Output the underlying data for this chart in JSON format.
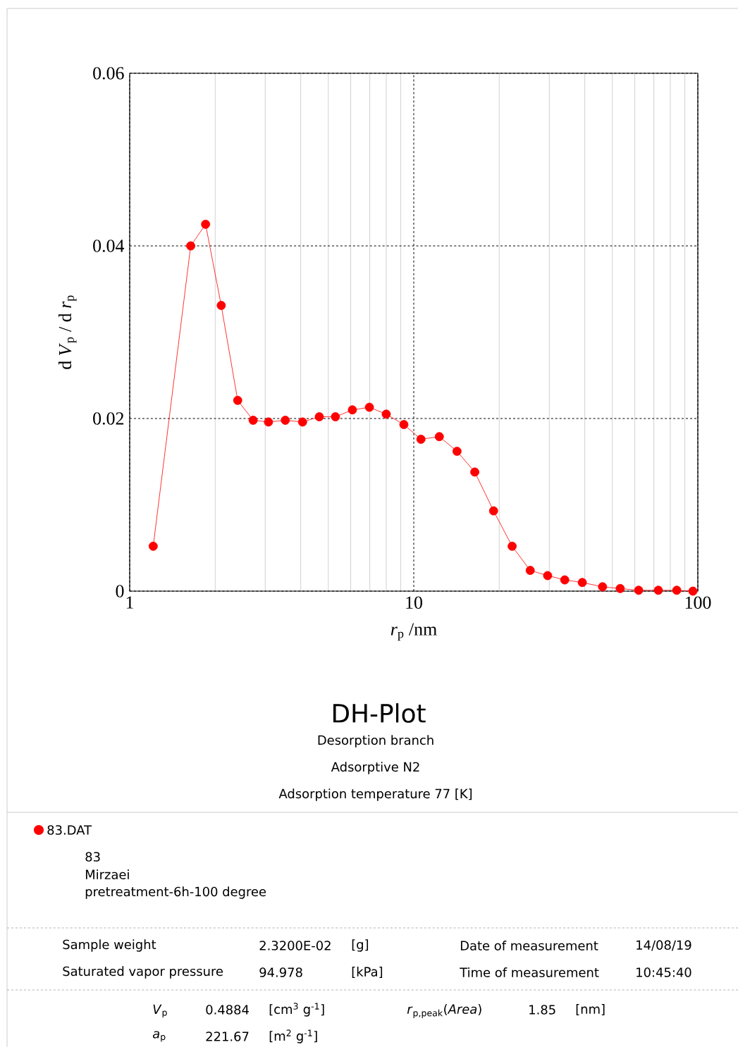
{
  "chart_data": {
    "type": "line",
    "title": "DH-Plot",
    "subtitle": "Desorption branch",
    "xlabel": "*r*$_{p}$ /nm",
    "ylabel": "d *V*$_{p}$ / d *r*$_{p}$",
    "log": "x",
    "xlim": [
      1,
      100
    ],
    "xticks": [
      1,
      10,
      100
    ],
    "ylim": [
      0,
      0.06
    ],
    "yticks": [
      0,
      0.02,
      0.04,
      0.06
    ],
    "grid": true,
    "legend": "bottom",
    "marker": "circle",
    "line_style": "solid",
    "series": [
      {
        "name": "83.DAT",
        "color": "#ff0000",
        "x": [
          1.21,
          1.64,
          1.85,
          2.1,
          2.4,
          2.72,
          3.08,
          3.53,
          4.06,
          4.65,
          5.3,
          6.08,
          6.98,
          8.0,
          9.23,
          10.6,
          12.3,
          14.2,
          16.4,
          19.1,
          22.2,
          25.7,
          29.6,
          34.0,
          39.2,
          46.2,
          53.3,
          61.9,
          72.6,
          84.3,
          96.1
        ],
        "values": [
          0.0052,
          0.04,
          0.0425,
          0.0331,
          0.0221,
          0.0198,
          0.0196,
          0.0198,
          0.0196,
          0.0202,
          0.0202,
          0.021,
          0.0213,
          0.0205,
          0.0193,
          0.0176,
          0.0179,
          0.0162,
          0.0138,
          0.0093,
          0.0052,
          0.0024,
          0.0018,
          0.0013,
          0.001,
          0.0005,
          0.0003,
          0.0001,
          0.0001,
          0.0001,
          0.0
        ]
      }
    ],
    "annotations": [
      "Adsorptive N2",
      "Adsorption temperature 77 [K]",
      "83",
      "Mirzaei",
      "pretreatment-6h-100 degree",
      "Sample weight",
      "2.3200E-02",
      "[g]",
      "Date of measurement",
      "14/08/19",
      "Saturated vapor pressure",
      "94.978",
      "[kPa]",
      "Time of measurement",
      "10:45:40",
      "*V*$_{p}$",
      "0.4884",
      "[cm$^{3}$ g$^{-1}$]",
      "*r*$_{p,peak}$(*Area*)",
      "1.85",
      "[nm]",
      "*a*$_{p}$",
      "221.67",
      "[m$^{2}$ g$^{-1}$]"
    ]
  }
}
